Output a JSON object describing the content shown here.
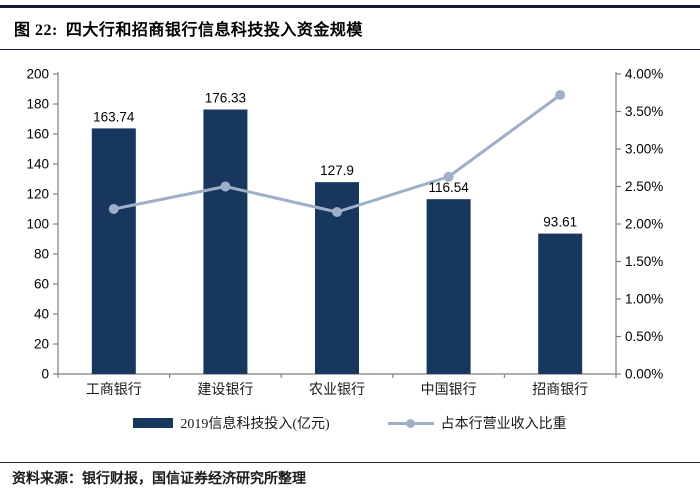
{
  "figure": {
    "label": "图 22:",
    "title": "四大行和招商银行信息科技投入资金规模"
  },
  "source_note": "资料来源：银行财报，国信证券经济研究所整理",
  "colors": {
    "bar": "#17375E",
    "line": "#9FAFC7",
    "axis": "#808080",
    "text": "#000000",
    "header_rule": "#101C30"
  },
  "chart_data": {
    "type": "bar",
    "subtype": "bar+line dual axis",
    "title": "四大行和招商银行信息科技投入资金规模",
    "categories": [
      "工商银行",
      "建设银行",
      "农业银行",
      "中国银行",
      "招商银行"
    ],
    "series": [
      {
        "name": "2019信息科技投入(亿元)",
        "type": "bar",
        "axis": "left",
        "values": [
          163.74,
          176.33,
          127.9,
          116.54,
          93.61
        ]
      },
      {
        "name": "占本行营业收入比重",
        "type": "line",
        "axis": "right",
        "values_pct": [
          2.2,
          2.5,
          2.16,
          2.63,
          3.72
        ]
      }
    ],
    "left_axis": {
      "min": 0,
      "max": 200,
      "step": 20,
      "tick_labels": [
        "0",
        "20",
        "40",
        "60",
        "80",
        "100",
        "120",
        "140",
        "160",
        "180",
        "200"
      ]
    },
    "right_axis": {
      "min": 0,
      "max": 4,
      "step": 0.5,
      "tick_labels": [
        "0.00%",
        "0.50%",
        "1.00%",
        "1.50%",
        "2.00%",
        "2.50%",
        "3.00%",
        "3.50%",
        "4.00%"
      ]
    },
    "grid": false,
    "legend_position": "bottom",
    "legend": [
      {
        "label": "2019信息科技投入(亿元)",
        "marker": "bar-swatch"
      },
      {
        "label": "占本行营业收入比重",
        "marker": "line-marker"
      }
    ]
  }
}
